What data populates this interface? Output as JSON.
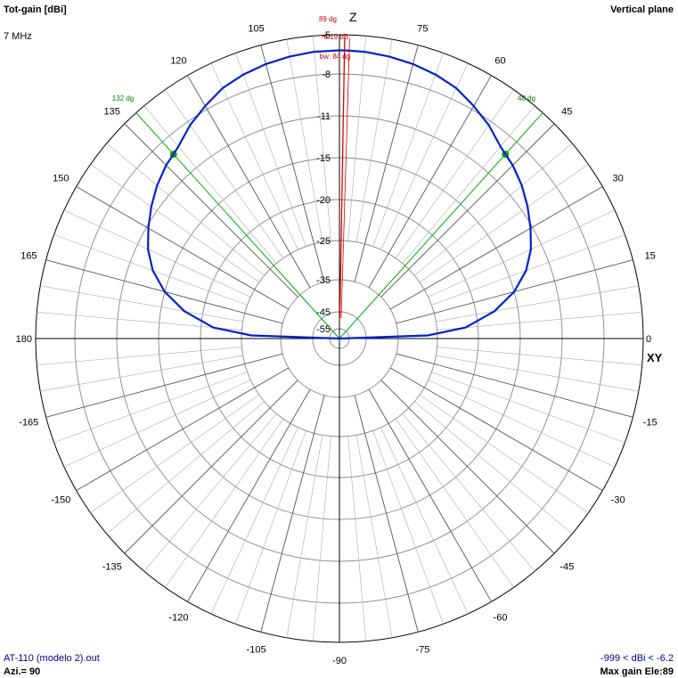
{
  "header": {
    "title": "Tot-gain [dBi]",
    "frequency": "7 MHz",
    "plane": "Vertical plane"
  },
  "footer": {
    "file": "AT-110 (modelo 2).out",
    "azimuth": "Azi.= 90",
    "range": "-999 < dBi < -6.2",
    "max_gain": "Max gain Ele:89"
  },
  "axes": {
    "z_label": "Z",
    "xy_label": "XY"
  },
  "markers": {
    "max_angle": "89 dg",
    "max_gain": "-6.19 dB",
    "beamwidth": "bw: 84 dg",
    "left_3db": "132 dg",
    "right_3db": "48 dg"
  },
  "colors": {
    "pattern": "#0022cc",
    "max_line": "#dd0000",
    "beamwidth_lines": "#00aa00",
    "grid": "#888888",
    "footer_text": "#00008b"
  },
  "chart_data": {
    "type": "polar",
    "angle_unit": "degrees",
    "radial_unit": "dBi",
    "angle_ticks": [
      0,
      15,
      30,
      45,
      60,
      75,
      90,
      105,
      120,
      135,
      150,
      165,
      180,
      -165,
      -150,
      -135,
      -120,
      -105,
      -90,
      -75,
      -60,
      -45,
      -30,
      -15
    ],
    "angle_tick_labels": [
      "0",
      "15",
      "30",
      "45",
      "60",
      "75",
      "",
      "105",
      "120",
      "135",
      "150",
      "165",
      "180",
      "-165",
      "-150",
      "-135",
      "-120",
      "-105",
      "-90",
      "-75",
      "-60",
      "-45",
      "-30",
      "-15"
    ],
    "radial_ticks": [
      -5,
      -8,
      -11,
      -15,
      -20,
      -25,
      -35,
      -45,
      -55
    ],
    "radial_tick_labels": [
      "-5",
      "-8",
      "-11",
      "-15",
      "-20",
      "-25",
      "-35",
      "-45",
      "-55"
    ],
    "max_gain_dbi": -6.19,
    "max_gain_elevation": 89,
    "beamwidth_deg": 84,
    "half_power_angles": [
      48,
      132
    ],
    "series": [
      {
        "elevation": [
          0,
          2,
          5,
          10,
          15,
          20,
          25,
          30,
          35,
          40,
          45,
          48,
          50,
          55,
          60,
          65,
          70,
          75,
          80,
          85,
          89,
          90,
          95,
          100,
          105,
          110,
          115,
          120,
          125,
          130,
          132,
          135,
          140,
          145,
          150,
          155,
          160,
          165,
          170,
          175,
          178,
          180
        ],
        "gain_dbi": [
          -999,
          -27.5,
          -21.5,
          -17.8,
          -15.0,
          -13.3,
          -12.1,
          -11.2,
          -10.5,
          -9.9,
          -9.4,
          -9.19,
          -9.0,
          -8.3,
          -7.7,
          -7.1,
          -6.75,
          -6.5,
          -6.33,
          -6.22,
          -6.19,
          -6.19,
          -6.22,
          -6.33,
          -6.5,
          -6.75,
          -7.1,
          -7.7,
          -8.3,
          -9.0,
          -9.19,
          -9.4,
          -9.9,
          -10.5,
          -11.2,
          -12.1,
          -13.3,
          -15.0,
          -17.8,
          -21.5,
          -27.5,
          -999
        ]
      }
    ]
  }
}
